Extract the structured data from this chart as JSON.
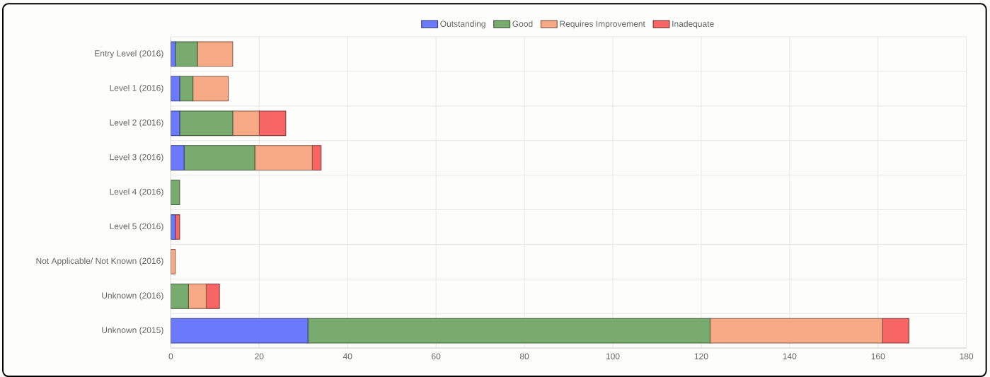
{
  "chart_data": {
    "type": "bar",
    "orientation": "horizontal",
    "stacked": true,
    "categories": [
      "Entry Level (2016)",
      "Level 1 (2016)",
      "Level 2 (2016)",
      "Level 3 (2016)",
      "Level 4 (2016)",
      "Level 5 (2016)",
      "Not Applicable/ Not Known (2016)",
      "Unknown (2016)",
      "Unknown (2015)"
    ],
    "series": [
      {
        "name": "Outstanding",
        "color": "#6b7afc",
        "values": [
          1,
          2,
          2,
          3,
          null,
          1,
          null,
          null,
          31
        ]
      },
      {
        "name": "Good",
        "color": "#7aab6e",
        "values": [
          5,
          3,
          12,
          16,
          2,
          null,
          null,
          4,
          91
        ]
      },
      {
        "name": "Requires Improvement",
        "color": "#f7a985",
        "values": [
          8,
          8,
          6,
          13,
          null,
          null,
          1,
          4,
          39
        ]
      },
      {
        "name": "Inadequate",
        "color": "#f76565",
        "values": [
          null,
          null,
          6,
          2,
          null,
          1,
          null,
          3,
          6
        ]
      }
    ],
    "xlim": [
      0,
      180
    ],
    "xticks": [
      0,
      20,
      40,
      60,
      80,
      100,
      120,
      140,
      160,
      180
    ],
    "grid": true,
    "legend": "top"
  }
}
